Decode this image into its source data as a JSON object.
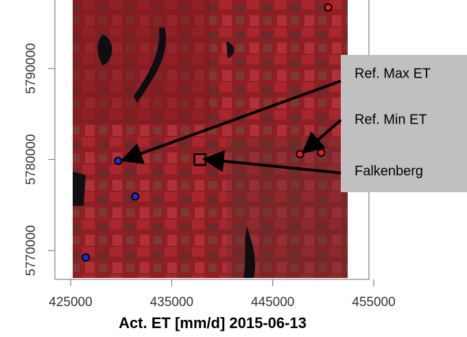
{
  "chart_data": {
    "type": "scatter",
    "title": "Act. ET [mm/d] 2015-06-13",
    "xlim": [
      423440,
      454525
    ],
    "ylim": [
      5766840,
      5797520
    ],
    "xticks": [
      425000,
      435000,
      445000,
      455000
    ],
    "yticks": [
      5770000,
      5780000,
      5790000
    ],
    "series": [
      {
        "color": "#1a2fd6",
        "x": [
          429700,
          431400,
          426500
        ],
        "y": [
          5779850,
          5775940,
          5769250
        ]
      },
      {
        "color": "#e82020",
        "x": [
          447700,
          449800,
          450500
        ],
        "y": [
          5780600,
          5780750,
          5796700
        ]
      }
    ],
    "annotations": [
      {
        "text": "Ref. Max ET"
      },
      {
        "text": "Ref. Min ET"
      },
      {
        "text": "Falkenberg",
        "x": 437800,
        "y": 5780000
      }
    ]
  }
}
